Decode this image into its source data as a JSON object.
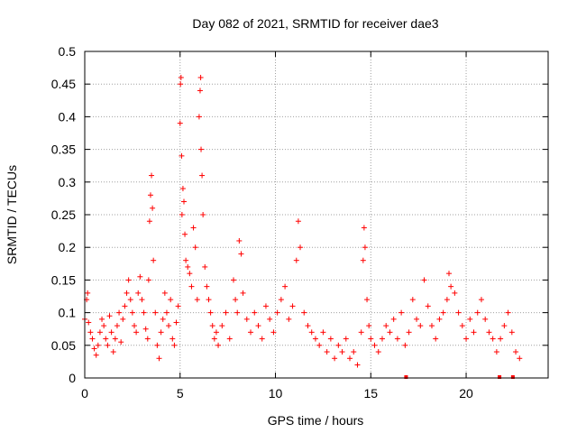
{
  "chart_data": {
    "type": "scatter",
    "title": "Day 082 of 2021, SRMTID for receiver dae3",
    "xlabel": "GPS time / hours",
    "ylabel": "SRMTID / TECUs",
    "xlim": [
      0,
      24.3
    ],
    "ylim": [
      0,
      0.5
    ],
    "x_ticks": [
      0,
      5,
      10,
      15,
      20
    ],
    "x_tick_labels": [
      "0",
      "5",
      "10",
      "15",
      "20"
    ],
    "y_ticks": [
      0,
      0.05,
      0.1,
      0.15,
      0.2,
      0.25,
      0.3,
      0.35,
      0.4,
      0.45,
      0.5
    ],
    "y_tick_labels": [
      "0",
      "0.05",
      "0.1",
      "0.15",
      "0.2",
      "0.25",
      "0.3",
      "0.35",
      "0.4",
      "0.45",
      "0.5"
    ],
    "grid": true,
    "marker": "+",
    "color": "#ff0000",
    "series": [
      {
        "name": "SRMTID",
        "points": [
          [
            0.0,
            0.09
          ],
          [
            0.1,
            0.12
          ],
          [
            0.15,
            0.13
          ],
          [
            0.2,
            0.085
          ],
          [
            0.3,
            0.07
          ],
          [
            0.4,
            0.06
          ],
          [
            0.5,
            0.045
          ],
          [
            0.6,
            0.035
          ],
          [
            0.7,
            0.05
          ],
          [
            0.8,
            0.07
          ],
          [
            0.9,
            0.09
          ],
          [
            1.0,
            0.08
          ],
          [
            1.1,
            0.06
          ],
          [
            1.2,
            0.05
          ],
          [
            1.3,
            0.095
          ],
          [
            1.4,
            0.07
          ],
          [
            1.5,
            0.04
          ],
          [
            1.6,
            0.06
          ],
          [
            1.7,
            0.08
          ],
          [
            1.8,
            0.1
          ],
          [
            1.9,
            0.055
          ],
          [
            2.0,
            0.09
          ],
          [
            2.1,
            0.11
          ],
          [
            2.2,
            0.13
          ],
          [
            2.3,
            0.15
          ],
          [
            2.4,
            0.12
          ],
          [
            2.5,
            0.1
          ],
          [
            2.6,
            0.08
          ],
          [
            2.7,
            0.07
          ],
          [
            2.8,
            0.13
          ],
          [
            2.9,
            0.155
          ],
          [
            3.0,
            0.12
          ],
          [
            3.1,
            0.1
          ],
          [
            3.2,
            0.075
          ],
          [
            3.3,
            0.06
          ],
          [
            3.35,
            0.15
          ],
          [
            3.4,
            0.24
          ],
          [
            3.45,
            0.28
          ],
          [
            3.5,
            0.31
          ],
          [
            3.55,
            0.26
          ],
          [
            3.6,
            0.18
          ],
          [
            3.7,
            0.1
          ],
          [
            3.8,
            0.05
          ],
          [
            3.9,
            0.03
          ],
          [
            4.0,
            0.07
          ],
          [
            4.1,
            0.09
          ],
          [
            4.2,
            0.13
          ],
          [
            4.3,
            0.1
          ],
          [
            4.4,
            0.08
          ],
          [
            4.5,
            0.12
          ],
          [
            4.6,
            0.06
          ],
          [
            4.7,
            0.05
          ],
          [
            4.8,
            0.085
          ],
          [
            4.9,
            0.11
          ],
          [
            5.0,
            0.39
          ],
          [
            5.02,
            0.45
          ],
          [
            5.05,
            0.46
          ],
          [
            5.08,
            0.34
          ],
          [
            5.1,
            0.25
          ],
          [
            5.15,
            0.29
          ],
          [
            5.2,
            0.27
          ],
          [
            5.25,
            0.22
          ],
          [
            5.3,
            0.18
          ],
          [
            5.4,
            0.17
          ],
          [
            5.5,
            0.16
          ],
          [
            5.6,
            0.14
          ],
          [
            5.7,
            0.23
          ],
          [
            5.8,
            0.2
          ],
          [
            5.9,
            0.12
          ],
          [
            6.0,
            0.4
          ],
          [
            6.05,
            0.44
          ],
          [
            6.08,
            0.46
          ],
          [
            6.1,
            0.35
          ],
          [
            6.15,
            0.31
          ],
          [
            6.2,
            0.25
          ],
          [
            6.3,
            0.17
          ],
          [
            6.4,
            0.14
          ],
          [
            6.5,
            0.12
          ],
          [
            6.6,
            0.1
          ],
          [
            6.7,
            0.08
          ],
          [
            6.8,
            0.06
          ],
          [
            6.9,
            0.07
          ],
          [
            7.0,
            0.05
          ],
          [
            7.2,
            0.08
          ],
          [
            7.4,
            0.1
          ],
          [
            7.6,
            0.06
          ],
          [
            7.8,
            0.15
          ],
          [
            7.9,
            0.12
          ],
          [
            8.0,
            0.1
          ],
          [
            8.1,
            0.21
          ],
          [
            8.2,
            0.19
          ],
          [
            8.3,
            0.13
          ],
          [
            8.5,
            0.09
          ],
          [
            8.7,
            0.07
          ],
          [
            8.9,
            0.1
          ],
          [
            9.1,
            0.08
          ],
          [
            9.3,
            0.06
          ],
          [
            9.5,
            0.11
          ],
          [
            9.7,
            0.09
          ],
          [
            9.9,
            0.07
          ],
          [
            10.1,
            0.1
          ],
          [
            10.3,
            0.12
          ],
          [
            10.5,
            0.14
          ],
          [
            10.7,
            0.09
          ],
          [
            10.9,
            0.11
          ],
          [
            11.1,
            0.18
          ],
          [
            11.2,
            0.24
          ],
          [
            11.3,
            0.2
          ],
          [
            11.5,
            0.1
          ],
          [
            11.7,
            0.08
          ],
          [
            11.9,
            0.07
          ],
          [
            12.1,
            0.06
          ],
          [
            12.3,
            0.05
          ],
          [
            12.5,
            0.07
          ],
          [
            12.7,
            0.04
          ],
          [
            12.9,
            0.06
          ],
          [
            13.1,
            0.03
          ],
          [
            13.3,
            0.05
          ],
          [
            13.5,
            0.04
          ],
          [
            13.7,
            0.06
          ],
          [
            13.9,
            0.03
          ],
          [
            14.1,
            0.04
          ],
          [
            14.3,
            0.02
          ],
          [
            14.5,
            0.07
          ],
          [
            14.6,
            0.18
          ],
          [
            14.65,
            0.23
          ],
          [
            14.7,
            0.2
          ],
          [
            14.8,
            0.12
          ],
          [
            14.9,
            0.08
          ],
          [
            15.0,
            0.06
          ],
          [
            15.2,
            0.05
          ],
          [
            15.4,
            0.04
          ],
          [
            15.6,
            0.06
          ],
          [
            15.8,
            0.08
          ],
          [
            16.0,
            0.07
          ],
          [
            16.2,
            0.09
          ],
          [
            16.4,
            0.06
          ],
          [
            16.6,
            0.1
          ],
          [
            16.8,
            0.05
          ],
          [
            17.0,
            0.07
          ],
          [
            17.2,
            0.12
          ],
          [
            17.4,
            0.09
          ],
          [
            17.6,
            0.08
          ],
          [
            17.8,
            0.15
          ],
          [
            18.0,
            0.11
          ],
          [
            18.2,
            0.08
          ],
          [
            18.4,
            0.06
          ],
          [
            18.6,
            0.09
          ],
          [
            18.8,
            0.1
          ],
          [
            19.0,
            0.12
          ],
          [
            19.1,
            0.16
          ],
          [
            19.2,
            0.14
          ],
          [
            19.4,
            0.13
          ],
          [
            19.6,
            0.1
          ],
          [
            19.8,
            0.08
          ],
          [
            20.0,
            0.06
          ],
          [
            20.2,
            0.09
          ],
          [
            20.4,
            0.07
          ],
          [
            20.6,
            0.1
          ],
          [
            20.8,
            0.12
          ],
          [
            21.0,
            0.09
          ],
          [
            21.2,
            0.07
          ],
          [
            21.4,
            0.06
          ],
          [
            21.6,
            0.04
          ],
          [
            21.8,
            0.06
          ],
          [
            22.0,
            0.08
          ],
          [
            22.2,
            0.1
          ],
          [
            22.4,
            0.07
          ],
          [
            22.6,
            0.04
          ],
          [
            22.8,
            0.03
          ]
        ]
      }
    ],
    "baseline_marks": [
      16.85,
      21.75,
      22.45
    ]
  }
}
